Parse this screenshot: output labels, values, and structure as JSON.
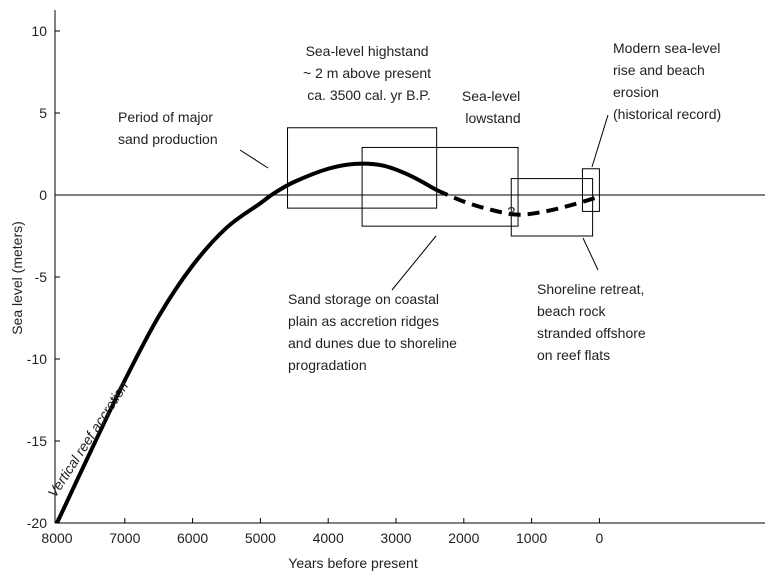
{
  "chart_data": {
    "type": "line",
    "title": "",
    "xlabel": "Years before present",
    "ylabel": "Sea level (meters)",
    "xlim": [
      8000,
      -1000
    ],
    "ylim": [
      -20,
      11
    ],
    "x_reversed": true,
    "x_ticks": [
      8000,
      7000,
      6000,
      5000,
      4000,
      3000,
      2000,
      1000,
      0
    ],
    "y_ticks": [
      10,
      5,
      0,
      -5,
      -10,
      -15,
      -20
    ],
    "reference_line_y": 0,
    "series": [
      {
        "style": "solid",
        "label": "Vertical reef accretion",
        "points": [
          [
            8000,
            -20
          ],
          [
            7500,
            -15.6
          ],
          [
            7000,
            -11.3
          ],
          [
            6500,
            -7.4
          ],
          [
            6000,
            -4.3
          ],
          [
            5500,
            -2.0
          ],
          [
            5000,
            -0.5
          ],
          [
            4800,
            0.1
          ],
          [
            4500,
            0.8
          ],
          [
            4000,
            1.6
          ],
          [
            3600,
            1.9
          ],
          [
            3200,
            1.8
          ],
          [
            2800,
            1.2
          ],
          [
            2400,
            0.3
          ]
        ]
      },
      {
        "style": "dashed",
        "label": "",
        "points": [
          [
            2400,
            0.3
          ],
          [
            2000,
            -0.4
          ],
          [
            1600,
            -0.9
          ],
          [
            1200,
            -1.2
          ],
          [
            800,
            -1.0
          ],
          [
            400,
            -0.6
          ],
          [
            0,
            -0.1
          ]
        ]
      }
    ],
    "boxes": [
      {
        "x_from": 4600,
        "x_to": 2400,
        "y_from": -0.8,
        "y_to": 4.1
      },
      {
        "x_from": 3500,
        "x_to": 1200,
        "y_from": -1.9,
        "y_to": 2.9
      },
      {
        "x_from": 1300,
        "x_to": 100,
        "y_from": -2.5,
        "y_to": 1.0
      },
      {
        "x_from": 250,
        "x_to": 0,
        "y_from": -1.0,
        "y_to": 1.6
      }
    ],
    "annotations": [
      {
        "lines": [
          "Sea-level highstand",
          "~ 2 m above present",
          "ca. 3500 cal. yr B.P."
        ]
      },
      {
        "lines": [
          "Sea-level",
          "lowstand"
        ]
      },
      {
        "lines": [
          "Modern sea-level",
          "rise and beach",
          "erosion",
          "(historical record)"
        ]
      },
      {
        "lines": [
          "Period of major",
          "sand production"
        ]
      },
      {
        "lines": [
          "Sand storage on coastal",
          "plain as accretion ridges",
          "and dunes due to shoreline",
          "progradation"
        ]
      },
      {
        "lines": [
          "Shoreline retreat,",
          "beach rock",
          "stranded offshore",
          "on reef  flats"
        ]
      }
    ],
    "question_mark": {
      "text": "?",
      "x": 1300,
      "y": -1.0
    }
  }
}
